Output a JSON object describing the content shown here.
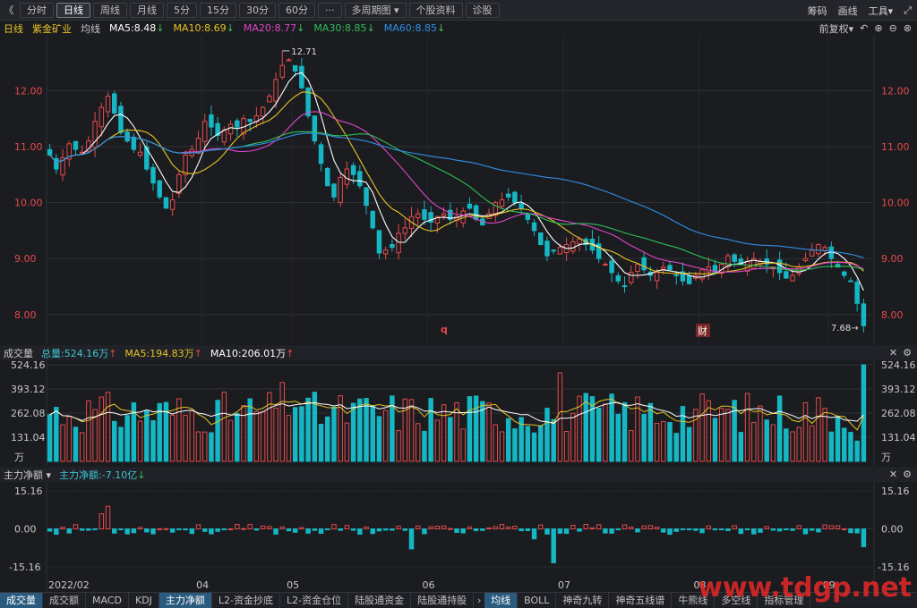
{
  "toolbar": {
    "back_icon": "《",
    "tabs": [
      "分时",
      "日线",
      "周线",
      "月线",
      "5分",
      "15分",
      "30分",
      "60分"
    ],
    "active_tab": "日线",
    "more_label": "···",
    "multi_period": "多周期图",
    "stock_info": "个股资料",
    "diagnose": "诊股",
    "right": [
      "筹码",
      "画线",
      "工具"
    ]
  },
  "legend": {
    "period": "日线",
    "stock": "紫金矿业",
    "ma_label": "均线",
    "ma5": "MA5:8.48",
    "ma10": "MA10:8.69",
    "ma20": "MA20:8.77",
    "ma30": "MA30:8.85",
    "ma60": "MA60:8.85",
    "adjust": "前复权",
    "colors": {
      "ma5": "#ffffff",
      "ma10": "#e6c323",
      "ma20": "#e045c8",
      "ma30": "#2fbf57",
      "ma60": "#2f8fe6"
    }
  },
  "price_pane": {
    "ticks": [
      "12.00",
      "11.00",
      "10.00",
      "9.00",
      "8.00"
    ],
    "max_label": "12.71",
    "min_label": "7.68",
    "markers": [
      "q",
      "财"
    ]
  },
  "volume_pane": {
    "title": "成交量",
    "total": "总量:524.16万",
    "ma5": "MA5:194.83万",
    "ma10": "MA10:206.01万",
    "ticks": [
      "524.16",
      "393.12",
      "262.08",
      "131.04"
    ],
    "unit": "万"
  },
  "flow_pane": {
    "title": "主力净额",
    "value": "主力净额:-7.10亿",
    "ticks": [
      "15.16",
      "0.00",
      "-15.16"
    ]
  },
  "x_axis": [
    "2022/02",
    "04",
    "05",
    "06",
    "07",
    "08",
    "09"
  ],
  "bottom_tabs_left": [
    "成交量",
    "成交额",
    "MACD",
    "KDJ",
    "主力净额",
    "L2-资金抄底",
    "L2-资金仓位",
    "陆股通资金",
    "陆股通持股"
  ],
  "bottom_tabs_right": [
    "均线",
    "BOLL",
    "神奇九转",
    "神奇五线谱",
    "牛熊线",
    "多空线",
    "指标管理"
  ],
  "watermark": "www.tdgp.net",
  "chart_data": {
    "type": "candlestick",
    "stock": "紫金矿业",
    "price_range": [
      7.68,
      12.71
    ],
    "closes": [
      10.85,
      10.6,
      10.8,
      11.05,
      10.95,
      10.9,
      11.1,
      11.45,
      11.7,
      11.9,
      11.6,
      11.25,
      11.1,
      10.95,
      10.9,
      10.6,
      10.35,
      10.1,
      9.9,
      10.05,
      10.5,
      10.85,
      10.95,
      11.15,
      11.45,
      11.35,
      11.2,
      11.3,
      11.4,
      11.35,
      11.5,
      11.45,
      11.55,
      11.7,
      11.9,
      12.2,
      12.45,
      12.55,
      12.35,
      12.05,
      11.55,
      11.1,
      10.7,
      10.3,
      10.1,
      10.45,
      10.6,
      10.5,
      10.3,
      9.95,
      9.55,
      9.1,
      9.15,
      9.2,
      9.45,
      9.55,
      9.75,
      9.8,
      9.7,
      9.65,
      9.75,
      9.8,
      9.7,
      9.75,
      9.85,
      9.9,
      9.7,
      9.6,
      9.8,
      10.0,
      10.05,
      10.1,
      10.0,
      9.9,
      9.7,
      9.5,
      9.25,
      9.05,
      9.15,
      9.2,
      9.25,
      9.3,
      9.35,
      9.25,
      9.15,
      9.0,
      8.9,
      8.75,
      8.6,
      8.5,
      8.75,
      8.9,
      8.8,
      8.7,
      8.75,
      8.85,
      8.8,
      8.7,
      8.6,
      8.55,
      8.7,
      8.8,
      8.85,
      8.75,
      8.9,
      9.05,
      8.95,
      8.9,
      8.95,
      9.0,
      8.95,
      8.9,
      8.85,
      8.75,
      8.65,
      8.7,
      8.85,
      9.0,
      9.15,
      9.25,
      9.2,
      9.0,
      8.85,
      8.7,
      8.6,
      8.2,
      7.8
    ]
  }
}
